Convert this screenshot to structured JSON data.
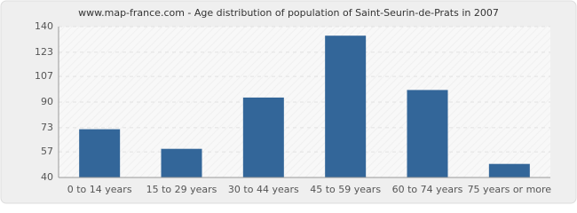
{
  "chart_data": {
    "type": "bar",
    "title": "www.map-france.com - Age distribution of population of Saint-Seurin-de-Prats in 2007",
    "categories": [
      "0 to 14 years",
      "15 to 29 years",
      "30 to 44 years",
      "45 to 59 years",
      "60 to 74 years",
      "75 years or more"
    ],
    "values": [
      72,
      59,
      93,
      134,
      98,
      49
    ],
    "color": "#336699",
    "ylim": [
      40,
      140
    ],
    "yticks": [
      40,
      57,
      73,
      90,
      107,
      123,
      140
    ],
    "grid": true
  }
}
